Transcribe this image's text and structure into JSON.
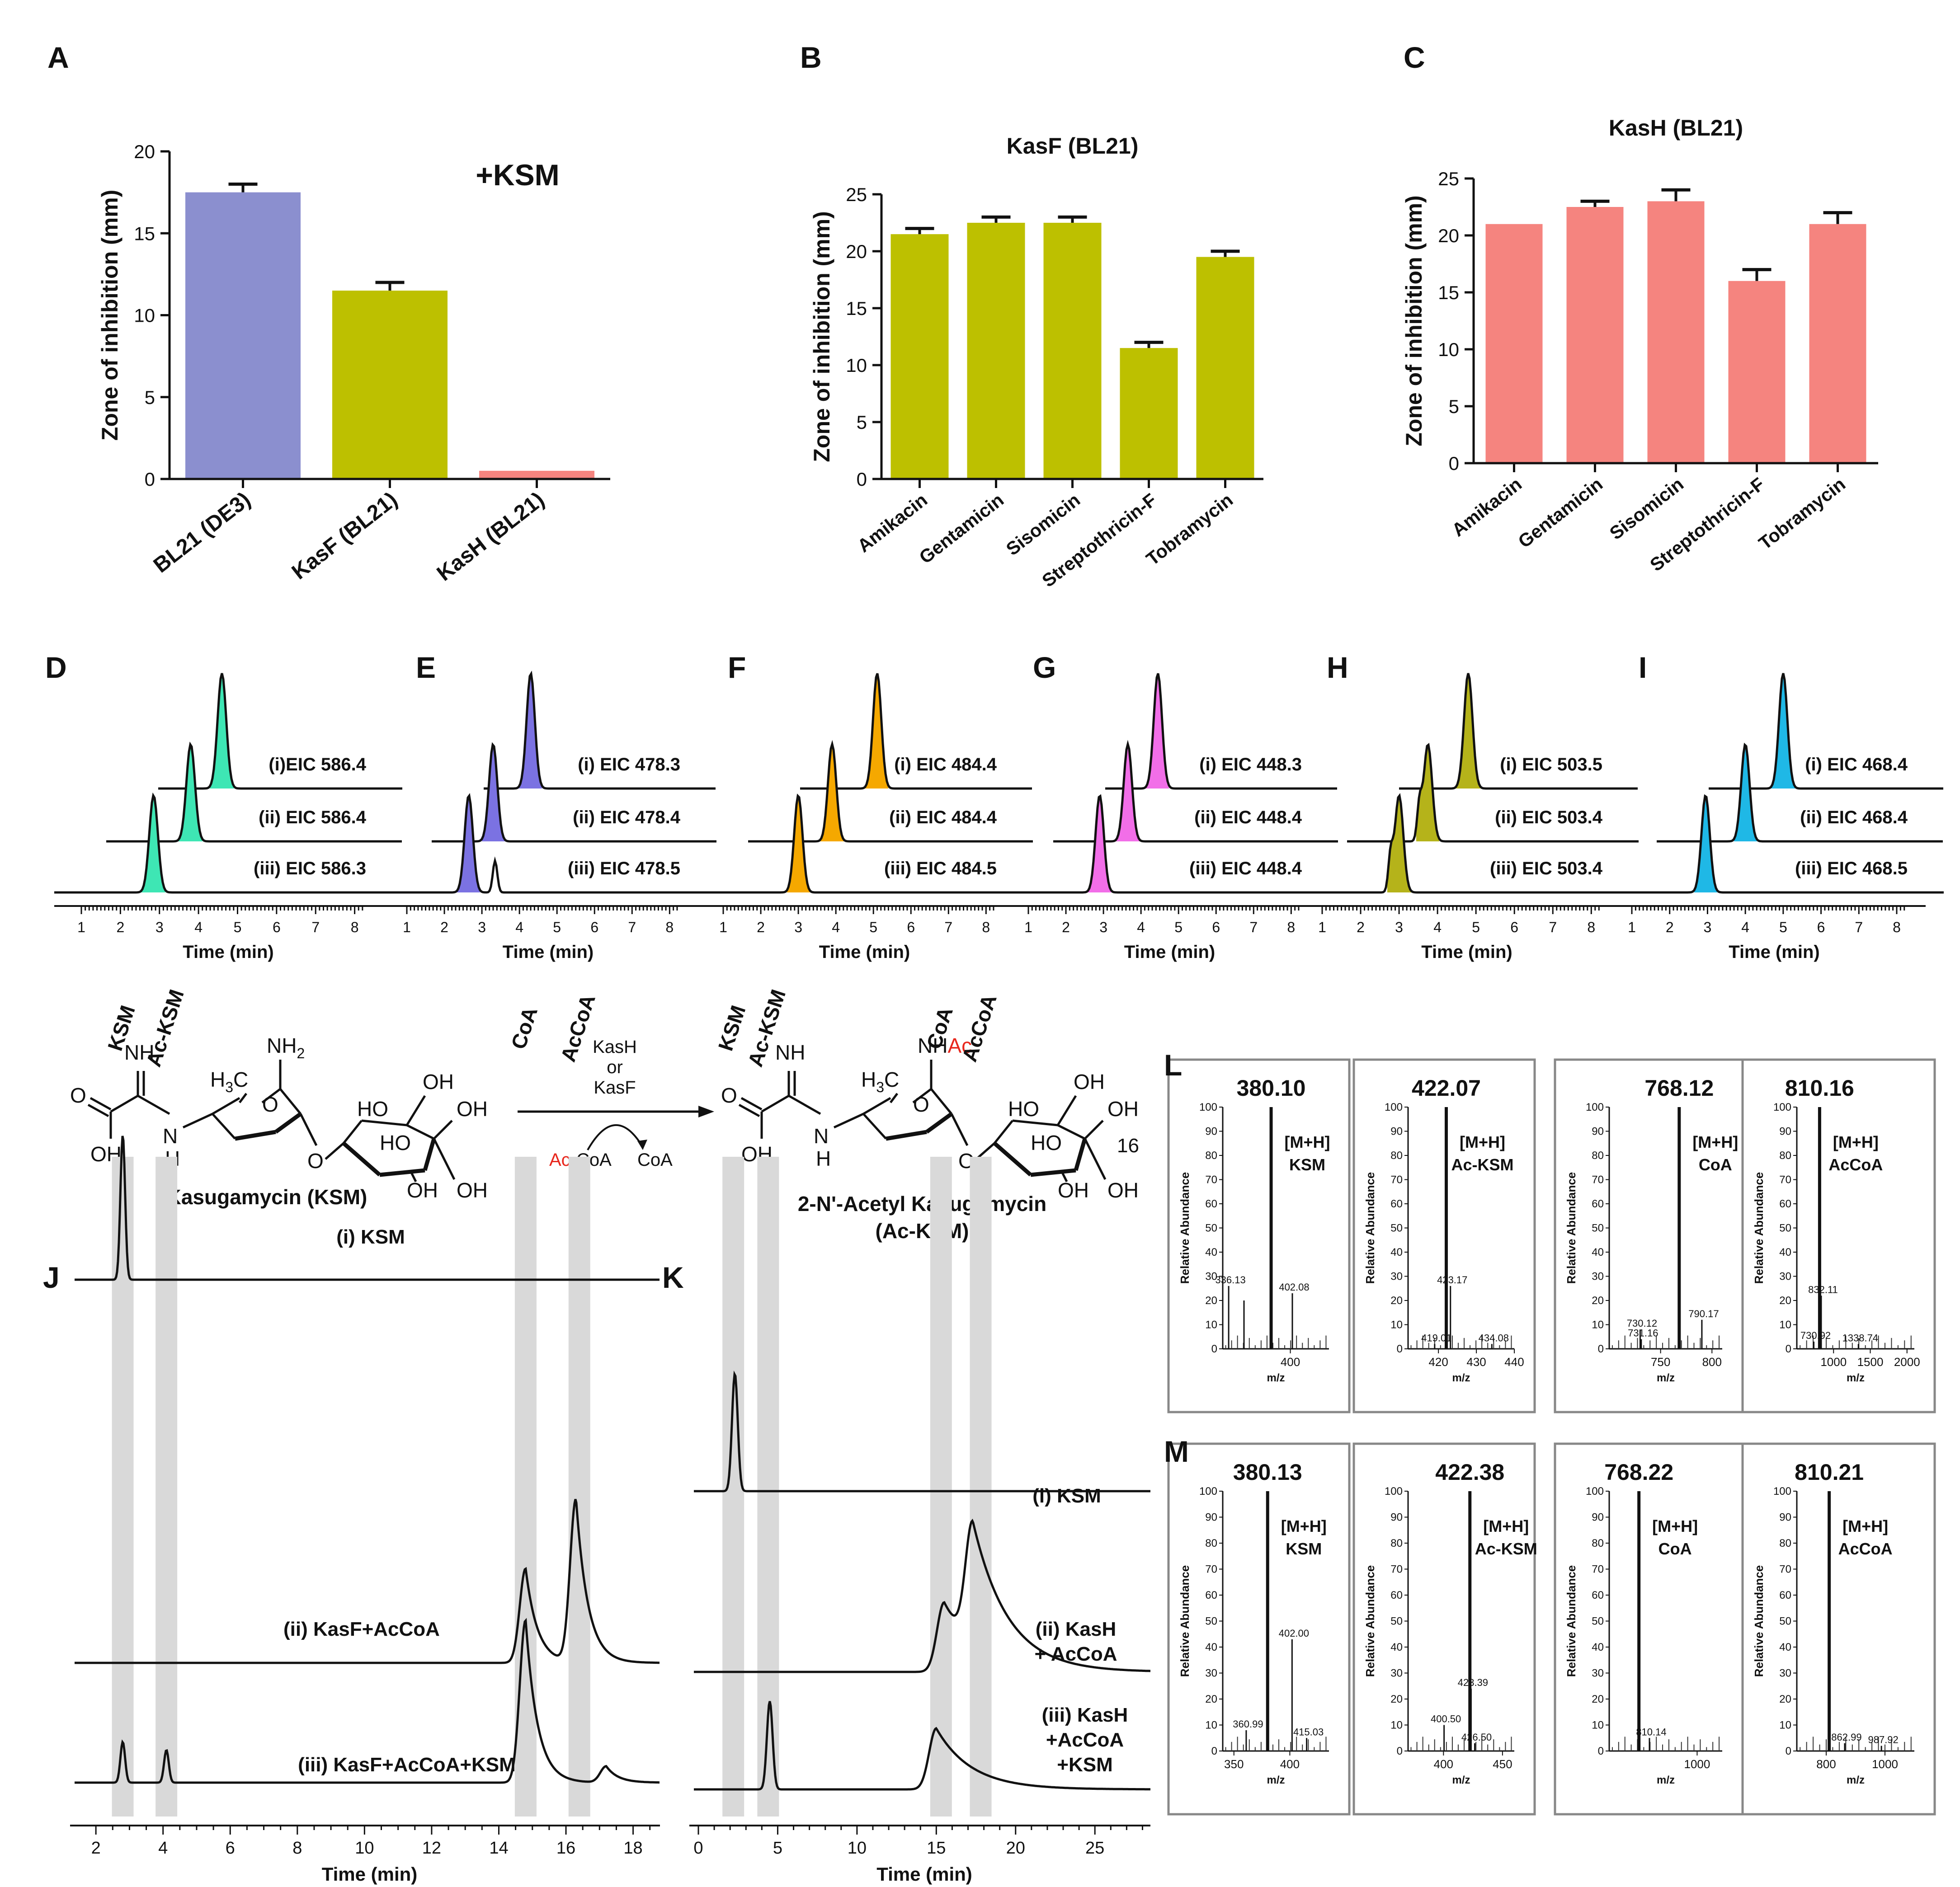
{
  "figure": {
    "panel_letters": [
      "A",
      "B",
      "C",
      "D",
      "E",
      "F",
      "G",
      "H",
      "I",
      "J",
      "K",
      "L",
      "M"
    ]
  },
  "chart_data": [
    {
      "id": "A",
      "type": "bar",
      "annotation": "+KSM",
      "ylabel": "Zone of inhibition (mm)",
      "ylim": [
        0,
        20
      ],
      "yticks": [
        0,
        5,
        10,
        15,
        20
      ],
      "categories": [
        "BL21 (DE3)",
        "KasF (BL21)",
        "KasH (BL21)"
      ],
      "values": [
        17.5,
        11.5,
        0.5
      ],
      "errors": [
        0.5,
        0.5,
        0
      ],
      "colors": [
        "#8b8fcf",
        "#bdc000",
        "#f5847f"
      ]
    },
    {
      "id": "B",
      "type": "bar",
      "title": "KasF (BL21)",
      "ylabel": "Zone of inhibition (mm)",
      "ylim": [
        0,
        25
      ],
      "yticks": [
        0,
        5,
        10,
        15,
        20,
        25
      ],
      "categories": [
        "Amikacin",
        "Gentamicin",
        "Sisomicin",
        "Streptothricin-F",
        "Tobramycin"
      ],
      "values": [
        21.5,
        22.5,
        22.5,
        11.5,
        19.5
      ],
      "errors": [
        0.5,
        0.5,
        0.5,
        0.5,
        0.5
      ],
      "colors": [
        "#bdc000",
        "#bdc000",
        "#bdc000",
        "#bdc000",
        "#bdc000"
      ]
    },
    {
      "id": "C",
      "type": "bar",
      "title": "KasH (BL21)",
      "ylabel": "Zone of inhibition (mm)",
      "ylim": [
        0,
        25
      ],
      "yticks": [
        0,
        5,
        10,
        15,
        20,
        25
      ],
      "categories": [
        "Amikacin",
        "Gentamicin",
        "Sisomicin",
        "Streptothricin-F",
        "Tobramycin"
      ],
      "values": [
        21,
        22.5,
        23,
        16,
        21
      ],
      "errors": [
        0,
        0.5,
        1,
        1,
        1
      ],
      "colors": [
        "#f5847f",
        "#f5847f",
        "#f5847f",
        "#f5847f",
        "#f5847f"
      ]
    },
    {
      "id": "D",
      "type": "line",
      "xlabel": "Time (min)",
      "xticks": [
        1,
        2,
        3,
        4,
        5,
        6,
        7,
        8
      ],
      "color": "#3ee6b4",
      "traces": [
        {
          "label": "(i)EIC 586.4",
          "peak_min": 4.6
        },
        {
          "label": "(ii) EIC 586.4",
          "peak_min": 3.8
        },
        {
          "label": "(iii) EIC 586.3",
          "peak_min": 2.85
        }
      ]
    },
    {
      "id": "E",
      "type": "line",
      "xlabel": "Time (min)",
      "xticks": [
        1,
        2,
        3,
        4,
        5,
        6,
        7,
        8
      ],
      "color": "#7b72e2",
      "traces": [
        {
          "label": "(i) EIC 478.3",
          "peak_min": 4.3
        },
        {
          "label": "(ii) EIC 478.4",
          "peak_min": 3.3
        },
        {
          "label": "(iii) EIC 478.5",
          "peak_min": 2.65
        }
      ]
    },
    {
      "id": "F",
      "type": "line",
      "xlabel": "Time (min)",
      "xticks": [
        1,
        2,
        3,
        4,
        5,
        6,
        7,
        8
      ],
      "color": "#f5a800",
      "traces": [
        {
          "label": "(i) EIC 484.4",
          "peak_min": 5.1
        },
        {
          "label": "(ii) EIC 484.4",
          "peak_min": 3.9
        },
        {
          "label": "(iii) EIC 484.5",
          "peak_min": 3.0
        }
      ]
    },
    {
      "id": "G",
      "type": "line",
      "xlabel": "Time (min)",
      "xticks": [
        1,
        2,
        3,
        4,
        5,
        6,
        7,
        8
      ],
      "color": "#f26ee8",
      "traces": [
        {
          "label": "(i) EIC 448.3",
          "peak_min": 4.45
        },
        {
          "label": "(ii) EIC 448.4",
          "peak_min": 3.65
        },
        {
          "label": "(iii) EIC 448.4",
          "peak_min": 2.9
        }
      ]
    },
    {
      "id": "H",
      "type": "line",
      "xlabel": "Time (min)",
      "xticks": [
        1,
        2,
        3,
        4,
        5,
        6,
        7,
        8
      ],
      "color": "#b5b31a",
      "traces": [
        {
          "label": "(i) EIC 503.5",
          "peak_min": 4.8
        },
        {
          "label": "(ii) EIC 503.4",
          "peak_min": 3.75
        },
        {
          "label": "(iii) EIC 503.4",
          "peak_min": 3.0
        }
      ]
    },
    {
      "id": "I",
      "type": "line",
      "xlabel": "Time (min)",
      "xticks": [
        1,
        2,
        3,
        4,
        5,
        6,
        7,
        8
      ],
      "color": "#1fb8e6",
      "traces": [
        {
          "label": "(i) EIC 468.4",
          "peak_min": 5.0
        },
        {
          "label": "(ii) EIC 468.4",
          "peak_min": 4.0
        },
        {
          "label": "(iii) EIC 468.5",
          "peak_min": 2.95
        }
      ]
    },
    {
      "id": "J",
      "type": "line",
      "xlabel": "Time (min)",
      "xrange": [
        1.5,
        18.8
      ],
      "xticks": [
        2,
        4,
        6,
        8,
        10,
        12,
        14,
        16,
        18
      ],
      "column_labels": [
        {
          "label": "KSM",
          "x": 2.8
        },
        {
          "label": "Ac-KSM",
          "x": 4.1
        },
        {
          "label": "CoA",
          "x": 14.8
        },
        {
          "label": "AcCoA",
          "x": 16.4
        }
      ],
      "traces": [
        {
          "label": "(i) KSM",
          "peaks": [
            {
              "x": 2.8,
              "h": 1.0
            }
          ]
        },
        {
          "label": "(ii) KasF+AcCoA",
          "peaks": [
            {
              "x": 14.8,
              "h": 0.55
            },
            {
              "x": 16.3,
              "h": 0.95
            }
          ]
        },
        {
          "label": "(iii) KasF+AcCoA+KSM",
          "peaks": [
            {
              "x": 2.8,
              "h": 0.25
            },
            {
              "x": 4.1,
              "h": 0.2
            },
            {
              "x": 14.8,
              "h": 1.0
            },
            {
              "x": 17.2,
              "h": 0.1
            }
          ]
        }
      ]
    },
    {
      "id": "K",
      "type": "line",
      "xlabel": "Time (min)",
      "xrange": [
        0,
        28.5
      ],
      "xticks": [
        0,
        5,
        10,
        15,
        20,
        25
      ],
      "column_labels": [
        {
          "label": "KSM",
          "x": 2.2
        },
        {
          "label": "Ac-KSM",
          "x": 4.4
        },
        {
          "label": "CoA",
          "x": 15.3
        },
        {
          "label": "AcCoA",
          "x": 17.8
        }
      ],
      "traces": [
        {
          "label": "(i) KSM",
          "peaks": [
            {
              "x": 2.3,
              "h": 1.0
            }
          ]
        },
        {
          "label": "(ii) KasH + AcCoA",
          "peaks": [
            {
              "x": 15.5,
              "h": 0.55
            },
            {
              "x": 17.3,
              "h": 0.95
            }
          ]
        },
        {
          "label": "(iii) KasH +AcCoA +KSM",
          "peaks": [
            {
              "x": 4.5,
              "h": 0.65
            },
            {
              "x": 15.0,
              "h": 0.45
            }
          ]
        }
      ]
    },
    {
      "id": "L",
      "type": "bar",
      "ylabel": "Relative Abundance",
      "xlabel": "m/z",
      "spectra": [
        {
          "mz": "380.10",
          "ion": "[M+H]",
          "name": "KSM",
          "xrange": [
            330,
            440
          ],
          "xticks": [
            400
          ],
          "peaks": [
            {
              "x": 380.1,
              "y": 100
            },
            {
              "x": 336.13,
              "y": 26,
              "label": "336.13"
            },
            {
              "x": 352.0,
              "y": 20
            },
            {
              "x": 402.08,
              "y": 23,
              "label": "402.08"
            }
          ]
        },
        {
          "mz": "422.07",
          "ion": "[M+H]",
          "name": "Ac-KSM",
          "xrange": [
            412,
            440
          ],
          "xticks": [
            420,
            430,
            440
          ],
          "peaks": [
            {
              "x": 422.07,
              "y": 100
            },
            {
              "x": 423.17,
              "y": 26,
              "label": "423.17"
            },
            {
              "x": 419.01,
              "y": 2,
              "label": "419.01"
            },
            {
              "x": 434.08,
              "y": 2,
              "label": "434.08"
            }
          ]
        },
        {
          "mz": "768.12",
          "ion": "[M+H]",
          "name": "CoA",
          "xrange": [
            700,
            810
          ],
          "xticks": [
            750,
            800
          ],
          "peaks": [
            {
              "x": 768.12,
              "y": 100
            },
            {
              "x": 790.17,
              "y": 12,
              "label": "790.17"
            },
            {
              "x": 730.12,
              "y": 8,
              "label": "730.12"
            },
            {
              "x": 731.16,
              "y": 4,
              "label": "731.16"
            }
          ]
        },
        {
          "mz": "810.16",
          "ion": "[M+H]",
          "name": "AcCoA",
          "xrange": [
            500,
            2100
          ],
          "xticks": [
            1000,
            1500,
            2000
          ],
          "peaks": [
            {
              "x": 810.16,
              "y": 100
            },
            {
              "x": 832.11,
              "y": 22,
              "label": "832.11"
            },
            {
              "x": 730.92,
              "y": 3,
              "label": "730.92"
            },
            {
              "x": 1338.74,
              "y": 2,
              "label": "1338.74"
            }
          ]
        }
      ]
    },
    {
      "id": "M",
      "type": "bar",
      "ylabel": "Relative Abundance",
      "xlabel": "m/z",
      "spectra": [
        {
          "mz": "380.13",
          "ion": "[M+H]",
          "name": "KSM",
          "xrange": [
            340,
            435
          ],
          "xticks": [
            350,
            400
          ],
          "peaks": [
            {
              "x": 380.13,
              "y": 100
            },
            {
              "x": 402.0,
              "y": 43,
              "label": "402.00"
            },
            {
              "x": 360.99,
              "y": 8,
              "label": "360.99"
            },
            {
              "x": 415.03,
              "y": 5,
              "label": "415.03"
            }
          ]
        },
        {
          "mz": "422.38",
          "ion": "[M+H]",
          "name": "Ac-KSM",
          "xrange": [
            370,
            460
          ],
          "xticks": [
            400,
            450
          ],
          "peaks": [
            {
              "x": 422.38,
              "y": 100
            },
            {
              "x": 423.39,
              "y": 24,
              "label": "423.39"
            },
            {
              "x": 400.5,
              "y": 10,
              "label": "400.50"
            },
            {
              "x": 426.5,
              "y": 3,
              "label": "426.50"
            }
          ]
        },
        {
          "mz": "768.22",
          "ion": "[M+H]",
          "name": "CoA",
          "xrange": [
            650,
            1100
          ],
          "xticks": [
            1000
          ],
          "peaks": [
            {
              "x": 768.22,
              "y": 100
            },
            {
              "x": 810.14,
              "y": 5,
              "label": "810.14"
            }
          ]
        },
        {
          "mz": "810.21",
          "ion": "[M+H]",
          "name": "AcCoA",
          "xrange": [
            700,
            1100
          ],
          "xticks": [
            800,
            1000
          ],
          "peaks": [
            {
              "x": 810.21,
              "y": 100
            },
            {
              "x": 862.99,
              "y": 3,
              "label": "862.99"
            },
            {
              "x": 987.92,
              "y": 2,
              "label": "987.92"
            }
          ]
        }
      ]
    }
  ],
  "scheme": {
    "substrate": "Kasugamycin (KSM)",
    "product_line1": "2-N'-Acetyl Kasugamycin",
    "product_line2": "(Ac-KSM)",
    "enzyme_top": "KasH",
    "enzyme_or": "or",
    "enzyme_bottom": "KasF",
    "cofactor_ac": "Ac",
    "cofactor_coa": "-CoA",
    "byproduct": "CoA",
    "position_label": "16",
    "atoms": {
      "nh": "NH",
      "h3c": "H",
      "h3c_sub": "3",
      "h3c_c": "C",
      "nh2": "NH",
      "nh2_sub": "2",
      "nhac_nh": "NH",
      "nhac_ac": "Ac",
      "o": "O",
      "oh": "OH",
      "ho": "HO",
      "h": "H"
    }
  }
}
